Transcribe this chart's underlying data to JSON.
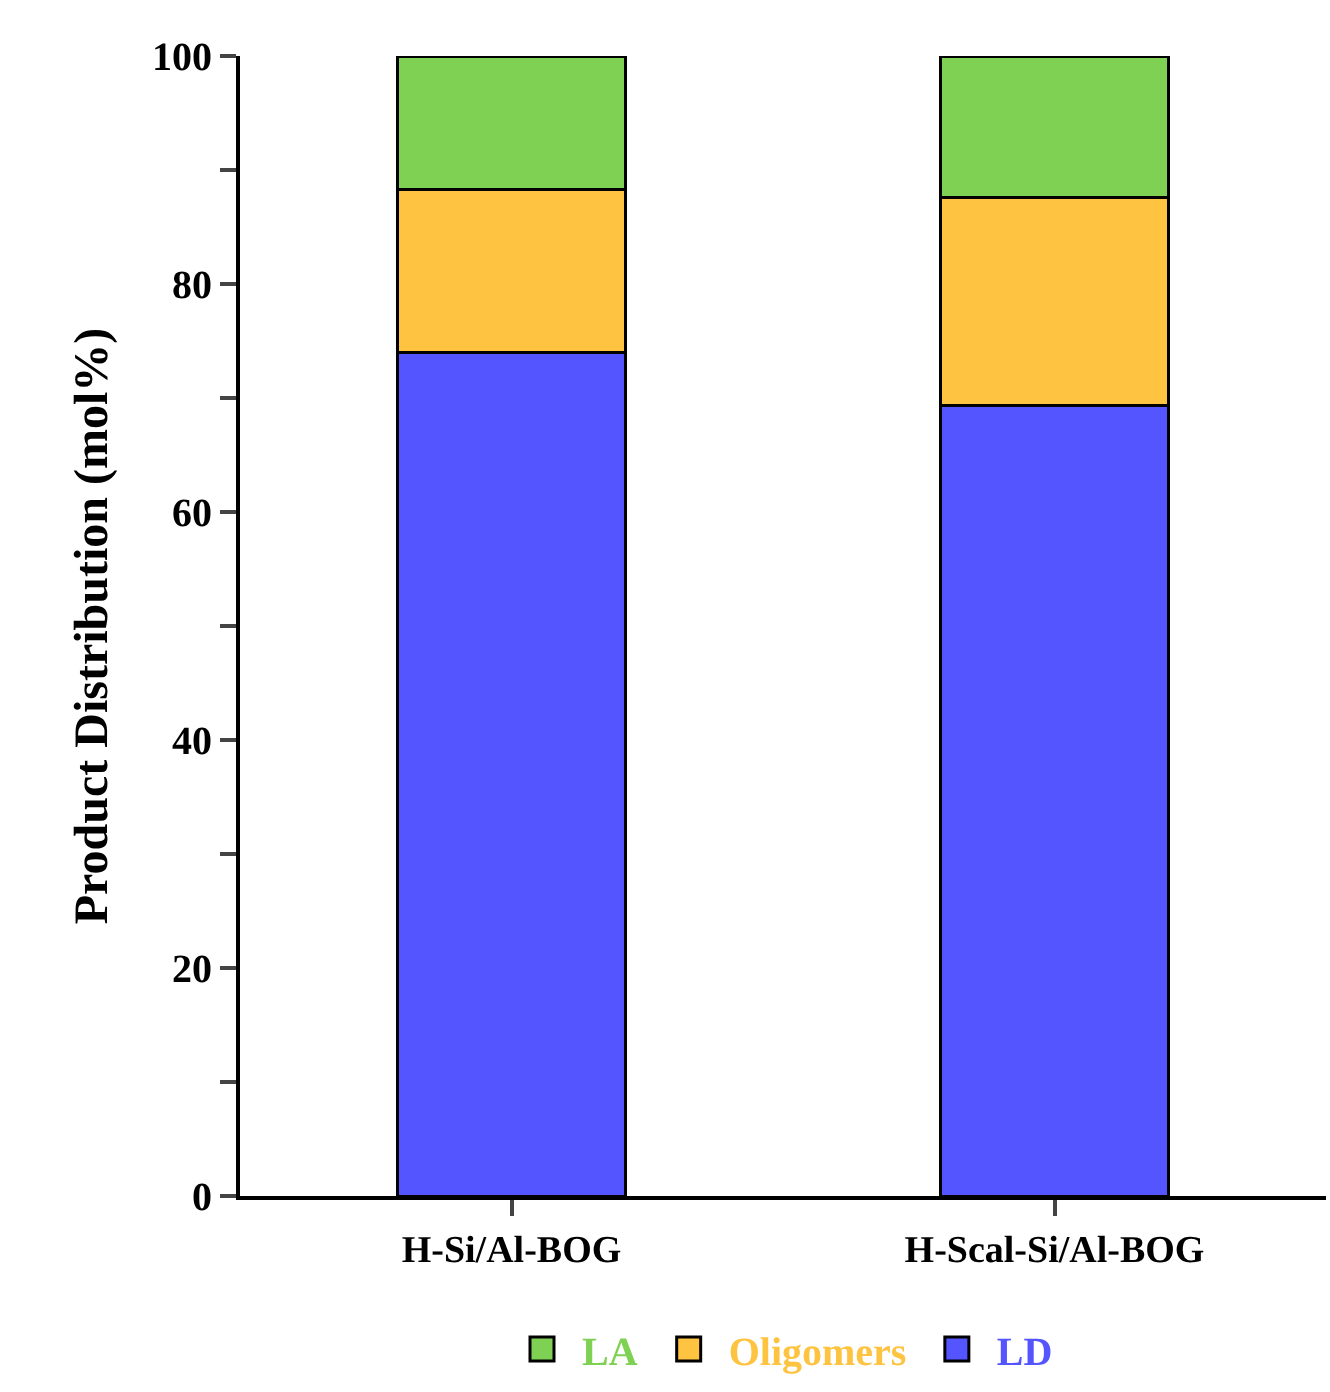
{
  "chart_data": {
    "type": "bar",
    "stacked": true,
    "ylabel": "Product Distribution (mol%)",
    "categories": [
      "H-Si/Al-BOG",
      "H-Scal-Si/Al-BOG"
    ],
    "series": [
      {
        "name": "LD",
        "color": "#5555ff",
        "values": [
          74.0,
          69.3
        ]
      },
      {
        "name": "Oligomers",
        "color": "#fec340",
        "values": [
          14.3,
          18.3
        ]
      },
      {
        "name": "LA",
        "color": "#7fd154",
        "values": [
          11.7,
          12.4
        ]
      }
    ],
    "ylim": [
      0,
      100
    ],
    "yticks": [
      0,
      {
        "value": 10,
        "label": null
      },
      20,
      {
        "value": 30,
        "label": null
      },
      40,
      {
        "value": 50,
        "label": null
      },
      60,
      {
        "value": 70,
        "label": null
      },
      80,
      {
        "value": 90,
        "label": null
      },
      100
    ],
    "legend": "bottom"
  }
}
